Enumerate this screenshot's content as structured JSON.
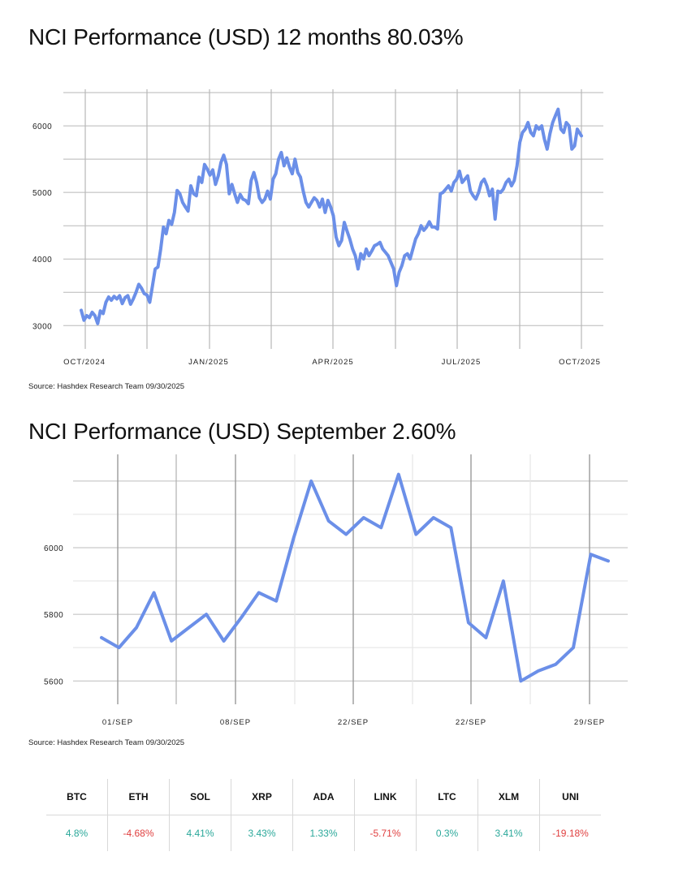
{
  "charts": {
    "annual": {
      "title": "NCI Performance (USD) 12 months 80.03%",
      "source": "Source: Hashdex Research Team 09/30/2025"
    },
    "monthly": {
      "title": "NCI Performance (USD) September 2.60%",
      "source": "Source: Hashdex Research Team 09/30/2025"
    }
  },
  "colors": {
    "line": "#6b8fe8",
    "positive": "#2aa89a",
    "negative": "#e04040",
    "grid": "#b8b8b8"
  },
  "chart_data": [
    {
      "type": "line",
      "title": "NCI Performance (USD) 12 months 80.03%",
      "x_tick_labels": [
        "OCT/2024",
        "JAN/2025",
        "APR/2025",
        "JUL/2025",
        "OCT/2025"
      ],
      "y_tick_labels": [
        "3000",
        "4000",
        "5000",
        "6000"
      ],
      "ylim": [
        2650,
        6550
      ],
      "grid": true,
      "x_index_range": [
        0,
        365
      ],
      "series": [
        {
          "points": [
            [
              0,
              3230
            ],
            [
              2,
              3080
            ],
            [
              4,
              3150
            ],
            [
              6,
              3120
            ],
            [
              8,
              3200
            ],
            [
              10,
              3150
            ],
            [
              12,
              3030
            ],
            [
              14,
              3220
            ],
            [
              16,
              3180
            ],
            [
              18,
              3350
            ],
            [
              20,
              3430
            ],
            [
              22,
              3380
            ],
            [
              24,
              3440
            ],
            [
              26,
              3400
            ],
            [
              28,
              3450
            ],
            [
              30,
              3330
            ],
            [
              32,
              3420
            ],
            [
              34,
              3450
            ],
            [
              36,
              3320
            ],
            [
              38,
              3400
            ],
            [
              40,
              3500
            ],
            [
              42,
              3620
            ],
            [
              44,
              3560
            ],
            [
              46,
              3480
            ],
            [
              48,
              3460
            ],
            [
              50,
              3350
            ],
            [
              52,
              3600
            ],
            [
              54,
              3850
            ],
            [
              56,
              3880
            ],
            [
              58,
              4150
            ],
            [
              60,
              4480
            ],
            [
              62,
              4380
            ],
            [
              64,
              4580
            ],
            [
              66,
              4520
            ],
            [
              68,
              4700
            ],
            [
              70,
              5030
            ],
            [
              72,
              4980
            ],
            [
              74,
              4850
            ],
            [
              76,
              4780
            ],
            [
              78,
              4720
            ],
            [
              80,
              5100
            ],
            [
              82,
              4980
            ],
            [
              84,
              4950
            ],
            [
              86,
              5230
            ],
            [
              88,
              5150
            ],
            [
              90,
              5420
            ],
            [
              92,
              5350
            ],
            [
              94,
              5260
            ],
            [
              96,
              5340
            ],
            [
              98,
              5120
            ],
            [
              100,
              5250
            ],
            [
              102,
              5450
            ],
            [
              104,
              5560
            ],
            [
              106,
              5420
            ],
            [
              108,
              4980
            ],
            [
              110,
              5120
            ],
            [
              112,
              4980
            ],
            [
              114,
              4850
            ],
            [
              116,
              4970
            ],
            [
              118,
              4900
            ],
            [
              120,
              4880
            ],
            [
              122,
              4830
            ],
            [
              124,
              5180
            ],
            [
              126,
              5300
            ],
            [
              128,
              5150
            ],
            [
              130,
              4920
            ],
            [
              132,
              4850
            ],
            [
              134,
              4900
            ],
            [
              136,
              5020
            ],
            [
              138,
              4900
            ],
            [
              140,
              5200
            ],
            [
              142,
              5280
            ],
            [
              144,
              5500
            ],
            [
              146,
              5600
            ],
            [
              148,
              5400
            ],
            [
              150,
              5520
            ],
            [
              152,
              5380
            ],
            [
              154,
              5280
            ],
            [
              156,
              5500
            ],
            [
              158,
              5300
            ],
            [
              160,
              5230
            ],
            [
              162,
              5020
            ],
            [
              164,
              4850
            ],
            [
              166,
              4780
            ],
            [
              168,
              4850
            ],
            [
              170,
              4920
            ],
            [
              172,
              4880
            ],
            [
              174,
              4780
            ],
            [
              176,
              4900
            ],
            [
              178,
              4700
            ],
            [
              180,
              4880
            ],
            [
              182,
              4780
            ],
            [
              184,
              4650
            ],
            [
              186,
              4330
            ],
            [
              188,
              4200
            ],
            [
              190,
              4280
            ],
            [
              192,
              4550
            ],
            [
              194,
              4420
            ],
            [
              196,
              4300
            ],
            [
              198,
              4150
            ],
            [
              200,
              4050
            ],
            [
              202,
              3850
            ],
            [
              204,
              4080
            ],
            [
              206,
              4000
            ],
            [
              208,
              4150
            ],
            [
              210,
              4050
            ],
            [
              212,
              4120
            ],
            [
              214,
              4200
            ],
            [
              216,
              4220
            ],
            [
              218,
              4250
            ],
            [
              220,
              4150
            ],
            [
              222,
              4100
            ],
            [
              224,
              4050
            ],
            [
              226,
              3950
            ],
            [
              228,
              3850
            ],
            [
              230,
              3600
            ],
            [
              232,
              3800
            ],
            [
              234,
              3900
            ],
            [
              236,
              4050
            ],
            [
              238,
              4080
            ],
            [
              240,
              4000
            ],
            [
              242,
              4150
            ],
            [
              244,
              4300
            ],
            [
              246,
              4380
            ],
            [
              248,
              4500
            ],
            [
              250,
              4430
            ],
            [
              252,
              4480
            ],
            [
              254,
              4560
            ],
            [
              256,
              4480
            ],
            [
              258,
              4480
            ],
            [
              260,
              4450
            ],
            [
              262,
              4980
            ],
            [
              264,
              5000
            ],
            [
              266,
              5050
            ],
            [
              268,
              5100
            ],
            [
              270,
              5020
            ],
            [
              272,
              5150
            ],
            [
              274,
              5200
            ],
            [
              276,
              5320
            ],
            [
              278,
              5150
            ],
            [
              280,
              5200
            ],
            [
              282,
              5250
            ],
            [
              284,
              5020
            ],
            [
              286,
              4950
            ],
            [
              288,
              4900
            ],
            [
              290,
              5000
            ],
            [
              292,
              5150
            ],
            [
              294,
              5200
            ],
            [
              296,
              5100
            ],
            [
              298,
              4950
            ],
            [
              300,
              5050
            ],
            [
              302,
              4600
            ],
            [
              304,
              5020
            ],
            [
              306,
              5000
            ],
            [
              308,
              5050
            ],
            [
              310,
              5150
            ],
            [
              312,
              5200
            ],
            [
              314,
              5100
            ],
            [
              316,
              5180
            ],
            [
              318,
              5400
            ],
            [
              320,
              5750
            ],
            [
              322,
              5900
            ],
            [
              324,
              5950
            ],
            [
              326,
              6050
            ],
            [
              328,
              5900
            ],
            [
              330,
              5850
            ],
            [
              332,
              6000
            ],
            [
              334,
              5950
            ],
            [
              336,
              6000
            ],
            [
              338,
              5800
            ],
            [
              340,
              5650
            ],
            [
              342,
              5880
            ],
            [
              344,
              6050
            ],
            [
              346,
              6150
            ],
            [
              348,
              6250
            ],
            [
              350,
              5950
            ],
            [
              352,
              5900
            ],
            [
              354,
              6050
            ],
            [
              356,
              6000
            ],
            [
              358,
              5650
            ],
            [
              360,
              5700
            ],
            [
              362,
              5950
            ],
            [
              365,
              5850
            ]
          ]
        }
      ]
    },
    {
      "type": "line",
      "title": "NCI Performance (USD) September 2.60%",
      "x_tick_labels": [
        "01/SEP",
        "08/SEP",
        "22/SEP",
        "22/SEP",
        "29/SEP"
      ],
      "y_tick_labels": [
        "5600",
        "5800",
        "6000"
      ],
      "ylim": [
        5530,
        6280
      ],
      "grid": true,
      "series": [
        {
          "values": [
            5730,
            5700,
            5760,
            5865,
            5720,
            5760,
            5800,
            5720,
            5790,
            5865,
            5840,
            6030,
            6200,
            6080,
            6040,
            6090,
            6060,
            6220,
            6040,
            6090,
            6060,
            5775,
            5730,
            5900,
            5600,
            5630,
            5650,
            5700,
            5980,
            5960
          ]
        }
      ]
    }
  ],
  "returns_table": {
    "assets": [
      "BTC",
      "ETH",
      "SOL",
      "XRP",
      "ADA",
      "LINK",
      "LTC",
      "XLM",
      "UNI"
    ],
    "values": [
      "4.8%",
      "-4.68%",
      "4.41%",
      "3.43%",
      "1.33%",
      "-5.71%",
      "0.3%",
      "3.41%",
      "-19.18%"
    ],
    "signs": [
      "pos",
      "neg",
      "pos",
      "pos",
      "pos",
      "neg",
      "pos",
      "pos",
      "neg"
    ]
  }
}
